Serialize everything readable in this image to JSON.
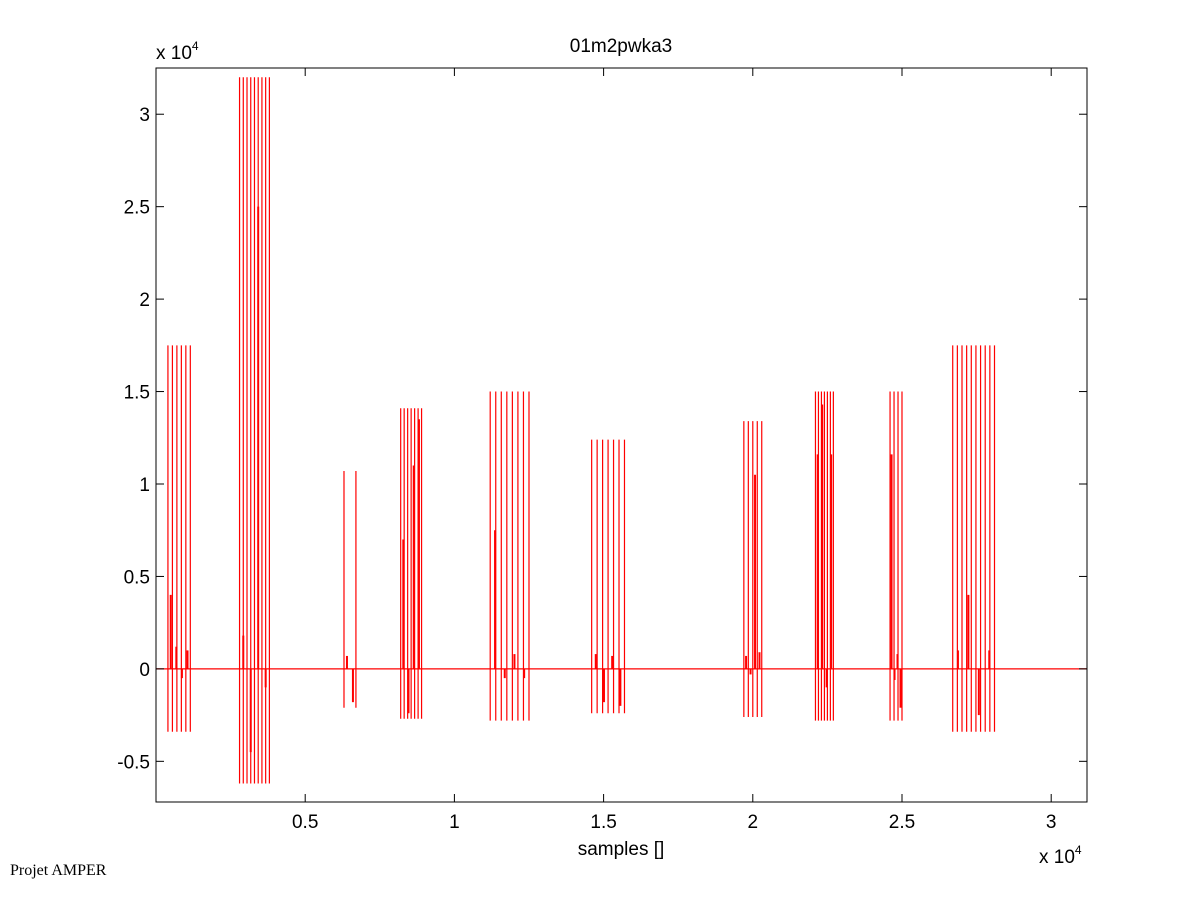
{
  "chart_data": {
    "type": "line",
    "title": "01m2pwka3",
    "xlabel": "samples []",
    "ylabel": "",
    "x_exponent_label": "x 10",
    "x_exponent_power": "4",
    "y_exponent_label": "x 10",
    "y_exponent_power": "4",
    "xlim": [
      0,
      31200
    ],
    "ylim": [
      -7200,
      32500
    ],
    "xticks": [
      5000,
      10000,
      15000,
      20000,
      25000,
      30000
    ],
    "xtick_labels": [
      "0.5",
      "1",
      "1.5",
      "2",
      "2.5",
      "3"
    ],
    "yticks": [
      -5000,
      0,
      5000,
      10000,
      15000,
      20000,
      25000,
      30000
    ],
    "ytick_labels": [
      "-0.5",
      "0",
      "0.5",
      "1",
      "1.5",
      "2",
      "2.5",
      "3"
    ],
    "line_color": "#ff0000",
    "grid": false,
    "bursts": [
      {
        "x_start": 400,
        "x_end": 1150,
        "count": 6,
        "high": 17500,
        "low": -3400,
        "mid": [
          4000,
          1200,
          -500,
          1000
        ]
      },
      {
        "x_start": 2800,
        "x_end": 3800,
        "count": 9,
        "high": 32000,
        "low": -6200,
        "mid": [
          1800,
          -4500,
          25000,
          -1000
        ]
      },
      {
        "x_start": 6300,
        "x_end": 6700,
        "count": 2,
        "high": 10700,
        "low": -2100,
        "mid": [
          700,
          -1800
        ]
      },
      {
        "x_start": 8200,
        "x_end": 8900,
        "count": 7,
        "high": 14100,
        "low": -2700,
        "mid": [
          7000,
          -2400,
          11000,
          13500
        ]
      },
      {
        "x_start": 11200,
        "x_end": 12500,
        "count": 8,
        "high": 15000,
        "low": -2800,
        "mid": [
          7500,
          -500,
          800,
          -500
        ]
      },
      {
        "x_start": 14600,
        "x_end": 15700,
        "count": 7,
        "high": 12400,
        "low": -2400,
        "mid": [
          800,
          -1800,
          700,
          -2000
        ]
      },
      {
        "x_start": 19700,
        "x_end": 20300,
        "count": 5,
        "high": 13400,
        "low": -2600,
        "mid": [
          700,
          -300,
          10500,
          900
        ]
      },
      {
        "x_start": 22100,
        "x_end": 22700,
        "count": 7,
        "high": 15000,
        "low": -2800,
        "mid": [
          11600,
          14300,
          -1000,
          11600
        ]
      },
      {
        "x_start": 24600,
        "x_end": 25000,
        "count": 4,
        "high": 15000,
        "low": -2800,
        "mid": [
          11600,
          -600,
          800,
          -2100
        ]
      },
      {
        "x_start": 26700,
        "x_end": 28100,
        "count": 10,
        "high": 17500,
        "low": -3400,
        "mid": [
          1000,
          4000,
          -2500,
          1000
        ]
      }
    ]
  },
  "footer_text": "Projet AMPER"
}
